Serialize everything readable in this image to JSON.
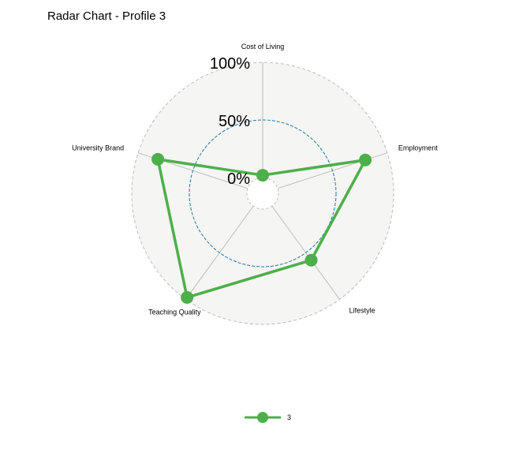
{
  "colors": {
    "series": "#4daf4a",
    "panel": "#f5f5f3",
    "outer_ring": "#bbbbbb",
    "mid_ring": "#1f77a4",
    "spokes": "#bdbdbd"
  },
  "chart_data": {
    "type": "radar",
    "title": "Radar Chart - Profile 3",
    "axes": [
      "Cost of Living",
      "Employment",
      "Lifestyle",
      "Teaching Quality",
      "University Brand"
    ],
    "grid_labels": [
      "0%",
      "50%",
      "100%"
    ],
    "range": [
      0,
      1
    ],
    "series": [
      {
        "name": "3",
        "values": [
          0.02,
          0.8,
          0.58,
          0.98,
          0.82
        ]
      }
    ],
    "legend_position": "bottom"
  }
}
